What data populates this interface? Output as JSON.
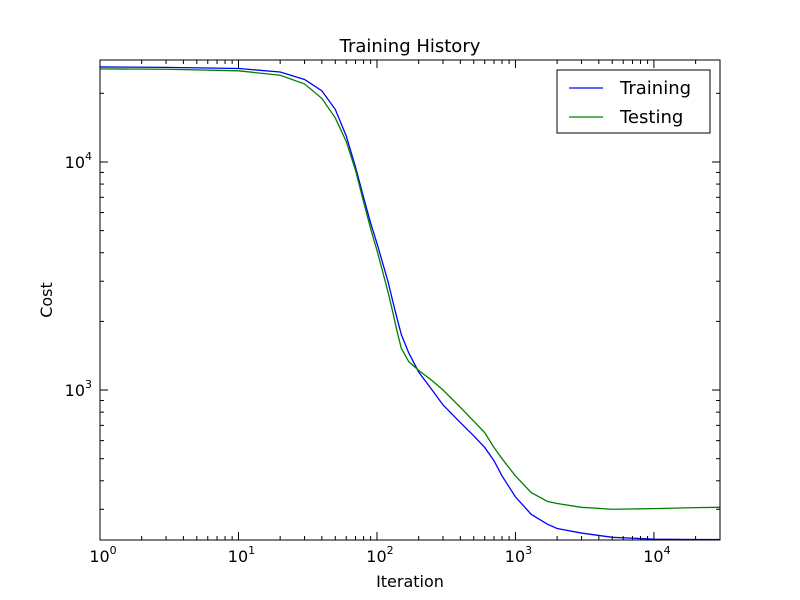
{
  "chart_data": {
    "type": "line",
    "title": "Training History",
    "xlabel": "Iteration",
    "ylabel": "Cost",
    "xscale": "log",
    "yscale": "log",
    "xlim": [
      1,
      30000
    ],
    "ylim": [
      220,
      28000
    ],
    "grid": false,
    "legend_position": "top-right",
    "x_ticks": [
      {
        "base": "10",
        "exp": "0",
        "value": 1
      },
      {
        "base": "10",
        "exp": "1",
        "value": 10
      },
      {
        "base": "10",
        "exp": "2",
        "value": 100
      },
      {
        "base": "10",
        "exp": "3",
        "value": 1000
      },
      {
        "base": "10",
        "exp": "4",
        "value": 10000
      }
    ],
    "y_ticks": [
      {
        "base": "10",
        "exp": "3",
        "value": 1000
      },
      {
        "base": "10",
        "exp": "4",
        "value": 10000
      }
    ],
    "series": [
      {
        "name": "Training",
        "color": "#0000ff",
        "points": [
          [
            1,
            26100
          ],
          [
            3,
            26000
          ],
          [
            10,
            25700
          ],
          [
            20,
            24800
          ],
          [
            30,
            23000
          ],
          [
            40,
            20500
          ],
          [
            50,
            17000
          ],
          [
            60,
            13000
          ],
          [
            70,
            9500
          ],
          [
            80,
            7000
          ],
          [
            90,
            5400
          ],
          [
            100,
            4400
          ],
          [
            110,
            3600
          ],
          [
            120,
            3000
          ],
          [
            130,
            2450
          ],
          [
            140,
            2050
          ],
          [
            150,
            1750
          ],
          [
            170,
            1450
          ],
          [
            200,
            1200
          ],
          [
            250,
            1000
          ],
          [
            300,
            860
          ],
          [
            400,
            720
          ],
          [
            500,
            630
          ],
          [
            600,
            560
          ],
          [
            700,
            490
          ],
          [
            800,
            420
          ],
          [
            1000,
            340
          ],
          [
            1300,
            285
          ],
          [
            1700,
            258
          ],
          [
            2000,
            247
          ],
          [
            3000,
            236
          ],
          [
            5000,
            226
          ],
          [
            10000,
            222
          ],
          [
            20000,
            221
          ],
          [
            30000,
            221
          ]
        ]
      },
      {
        "name": "Testing",
        "color": "#008000",
        "points": [
          [
            1,
            25600
          ],
          [
            3,
            25500
          ],
          [
            10,
            25100
          ],
          [
            20,
            24000
          ],
          [
            30,
            22000
          ],
          [
            40,
            19000
          ],
          [
            50,
            15600
          ],
          [
            60,
            12300
          ],
          [
            70,
            9200
          ],
          [
            80,
            6700
          ],
          [
            90,
            5100
          ],
          [
            100,
            4100
          ],
          [
            110,
            3300
          ],
          [
            120,
            2700
          ],
          [
            130,
            2200
          ],
          [
            140,
            1800
          ],
          [
            150,
            1520
          ],
          [
            170,
            1330
          ],
          [
            200,
            1220
          ],
          [
            250,
            1100
          ],
          [
            300,
            1000
          ],
          [
            400,
            840
          ],
          [
            500,
            730
          ],
          [
            600,
            650
          ],
          [
            700,
            560
          ],
          [
            800,
            500
          ],
          [
            1000,
            420
          ],
          [
            1300,
            355
          ],
          [
            1700,
            325
          ],
          [
            2000,
            318
          ],
          [
            3000,
            306
          ],
          [
            5000,
            300
          ],
          [
            10000,
            302
          ],
          [
            20000,
            305
          ],
          [
            30000,
            306
          ]
        ]
      }
    ]
  }
}
